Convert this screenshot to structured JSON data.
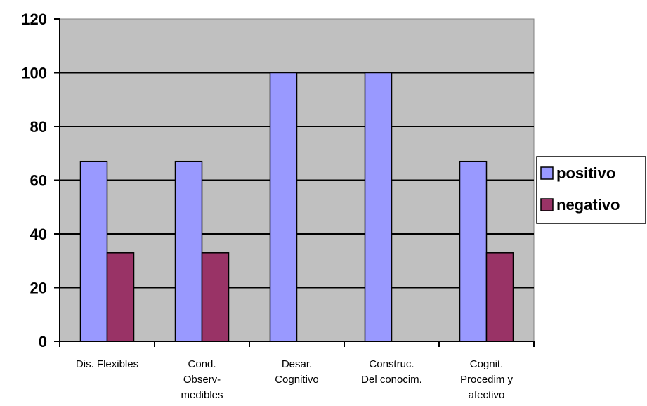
{
  "chart_data": {
    "type": "bar",
    "categories": [
      [
        "Dis. Flexibles"
      ],
      [
        "Cond.",
        "Observ-",
        "medibles"
      ],
      [
        "Desar.",
        "Cognitivo"
      ],
      [
        "Construc.",
        "Del conocim."
      ],
      [
        "Cognit.",
        "Procedim y",
        "afectivo"
      ]
    ],
    "series": [
      {
        "name": "positivo",
        "values": [
          67,
          67,
          100,
          100,
          67
        ],
        "color": "#9999ff"
      },
      {
        "name": "negativo",
        "values": [
          33,
          33,
          0,
          0,
          33
        ],
        "color": "#993366"
      }
    ],
    "ylim": [
      0,
      120
    ],
    "yticks": [
      0,
      20,
      40,
      60,
      80,
      100,
      120
    ],
    "grid": true,
    "plot_background": "#c0c0c0",
    "legend_position": "right"
  }
}
